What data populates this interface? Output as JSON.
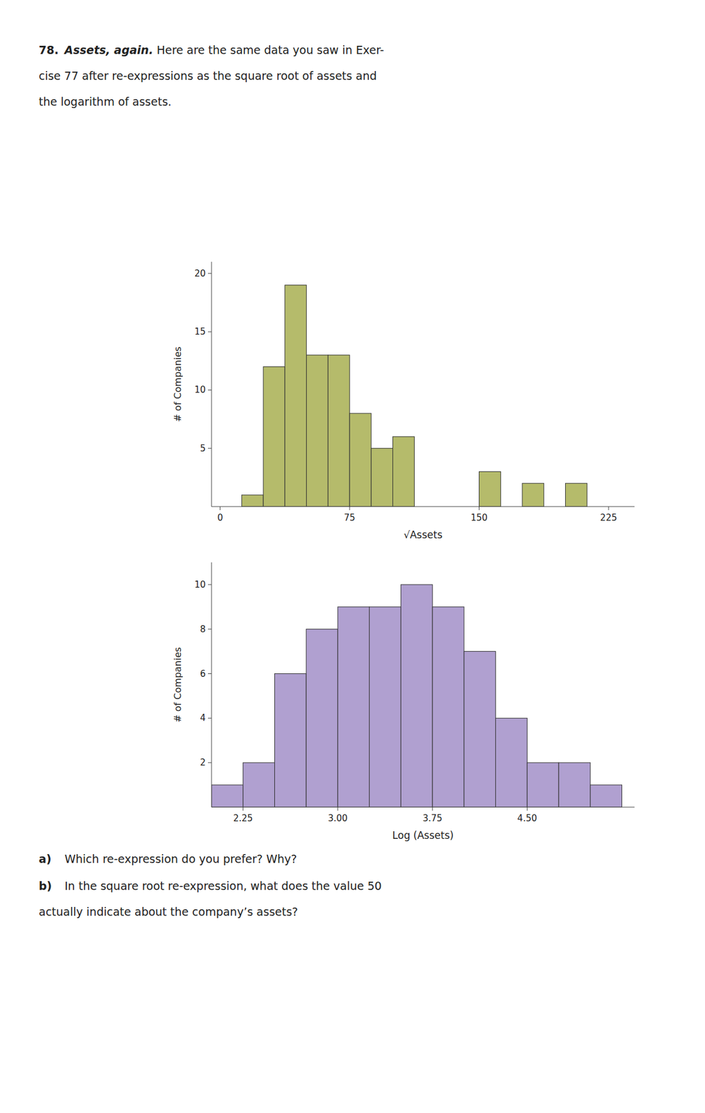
{
  "chart_data": [
    {
      "type": "histogram",
      "annotations": [
        "78.",
        "Assets, again.",
        " Here are the same data you saw in Exer-",
        "cise 77 after re-expressions as the square root of assets and",
        "the logarithm of assets."
      ],
      "x_label": "√Assets",
      "y_label": "# of Companies",
      "x": [
        12.5,
        25,
        37.5,
        50,
        62.5,
        75,
        87.5,
        100,
        150,
        175,
        200
      ],
      "bin_width": 12.5,
      "values": [
        1,
        12,
        19,
        13,
        13,
        8,
        5,
        6,
        3,
        2,
        2
      ],
      "color": "#b5bb6b",
      "xlim": [
        -5,
        240
      ],
      "xticks": [
        0,
        75,
        150,
        225
      ],
      "ylim": [
        0,
        21
      ],
      "yticks": [
        5,
        10,
        15,
        20
      ]
    },
    {
      "type": "histogram",
      "annotations": [
        "a)",
        "Which re-expression do you prefer? Why?",
        "b)",
        "In the square root re-expression, what does the value 50",
        "actually indicate about the company’s assets?"
      ],
      "x_label": "Log (Assets)",
      "y_label": "# of Companies",
      "x": [
        2.0,
        2.25,
        2.5,
        2.75,
        3.0,
        3.25,
        3.5,
        3.75,
        4.0,
        4.25,
        4.5,
        4.75,
        5.0
      ],
      "bin_width": 0.25,
      "values": [
        1,
        2,
        6,
        8,
        9,
        9,
        10,
        9,
        7,
        4,
        2,
        2,
        1
      ],
      "color": "#b0a0d0",
      "xlim": [
        2.0,
        5.35
      ],
      "xticks": [
        2.25,
        {
          "value": 3.0,
          "label": "3.00"
        },
        3.75,
        {
          "value": 4.5,
          "label": "4.50"
        }
      ],
      "ylim": [
        0,
        11
      ],
      "yticks": [
        2,
        4,
        6,
        8,
        10
      ]
    }
  ]
}
